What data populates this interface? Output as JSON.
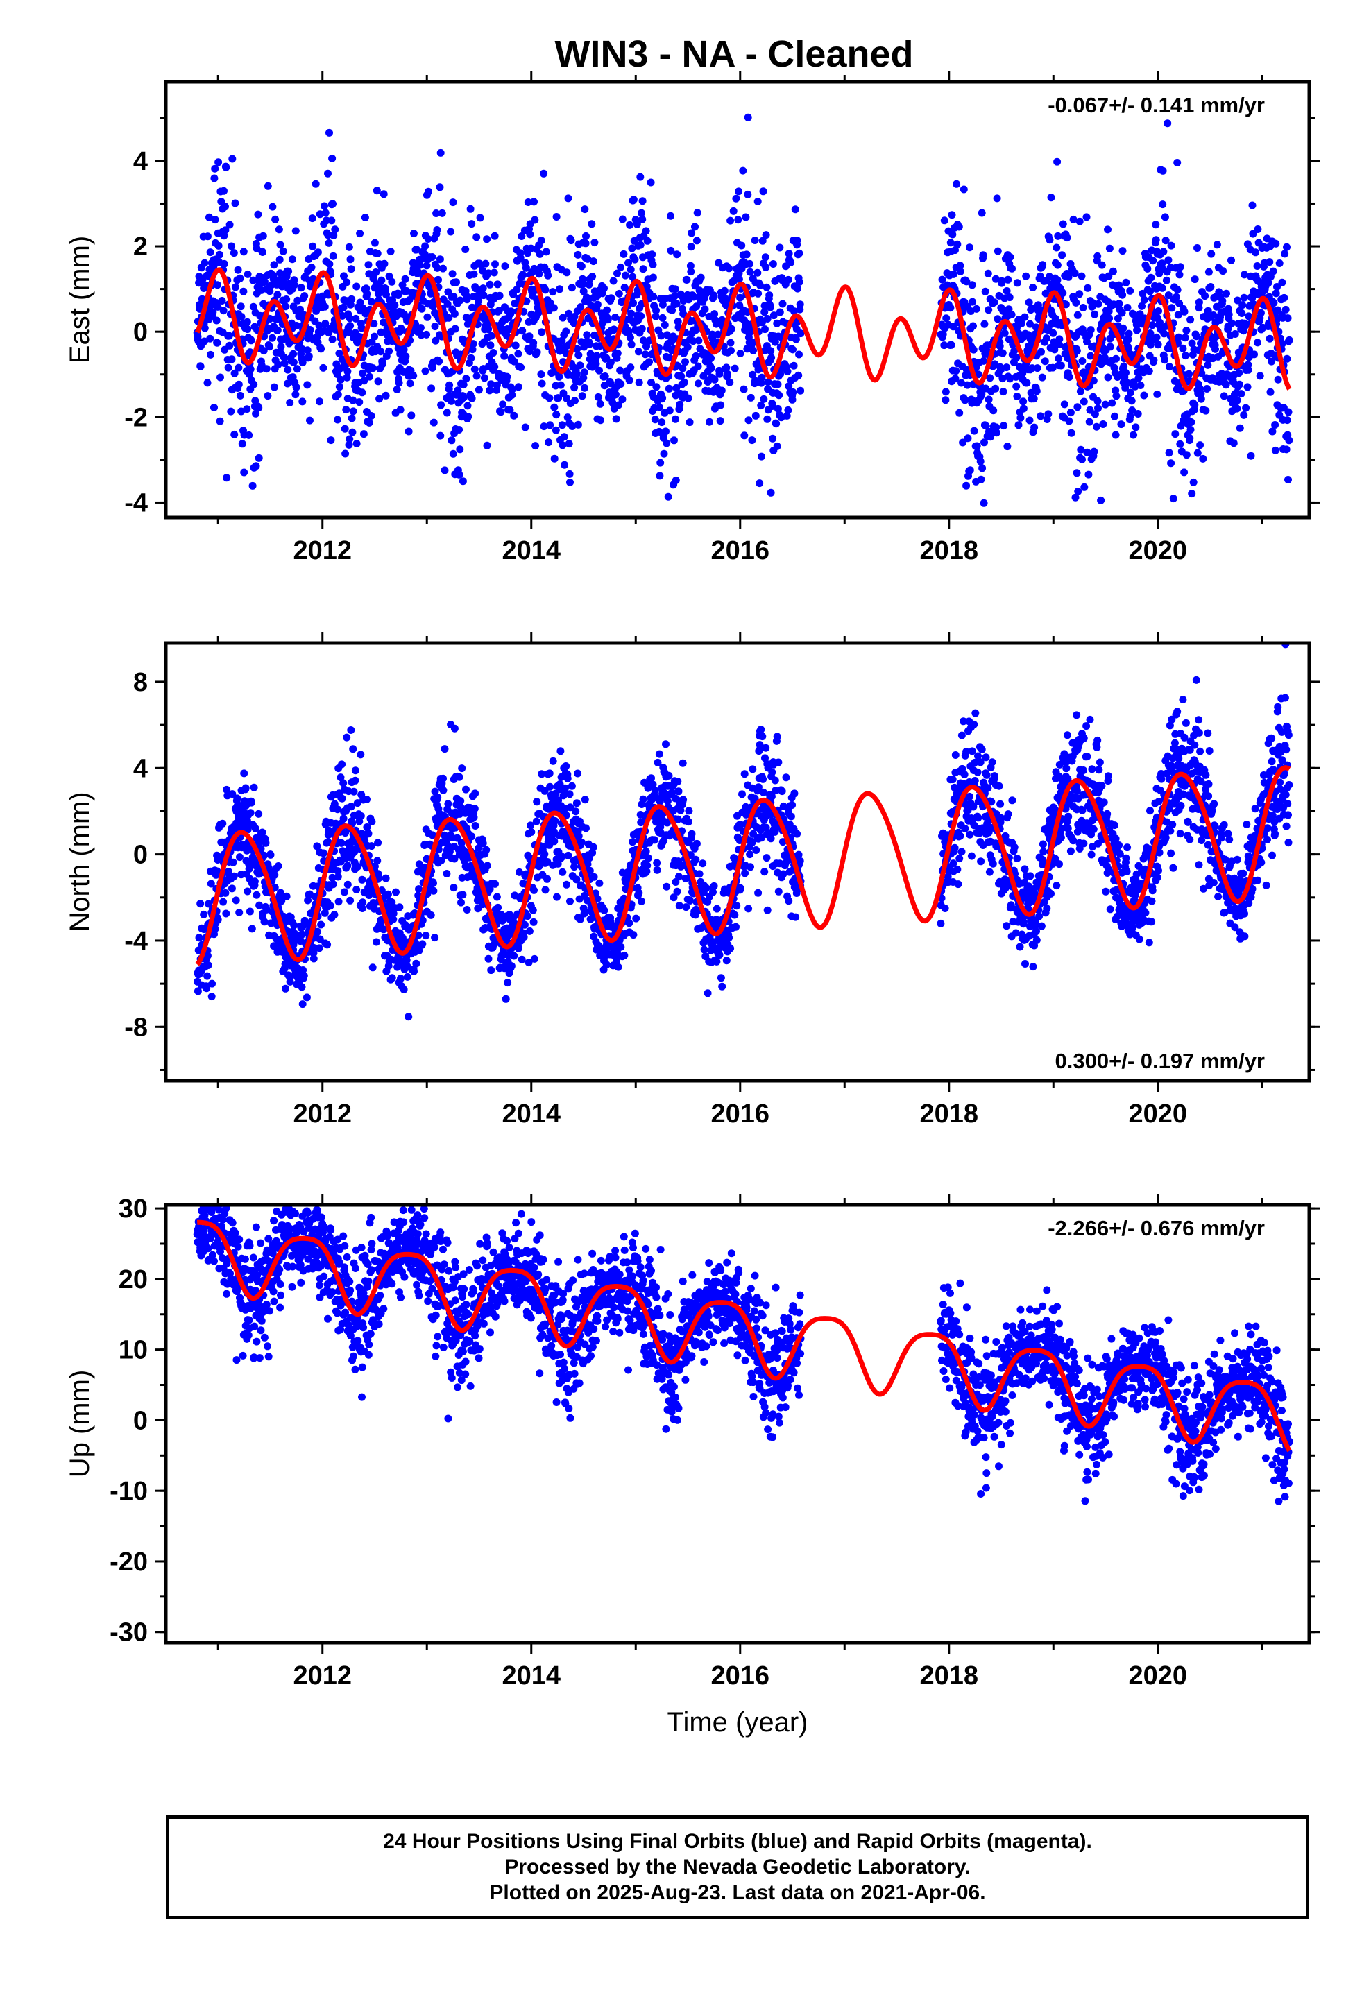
{
  "title": "WIN3  - NA - Cleaned",
  "colors": {
    "data": "#0000ff",
    "model": "#ff0000",
    "frame": "#000000",
    "rapid": "#ff00ff"
  },
  "chart_data": [
    {
      "type": "scatter",
      "name": "east",
      "ylabel": "East (mm)",
      "xlabel": "",
      "xlim": [
        2010.5,
        2021.45
      ],
      "ylim": [
        -4.35,
        5.85
      ],
      "yticks": [
        -4,
        -2,
        0,
        2,
        4
      ],
      "xticks": [
        2012,
        2014,
        2016,
        2018,
        2020
      ],
      "xtick_labels": [
        "2012",
        "2014",
        "2016",
        "2018",
        "2020"
      ],
      "rate_text": "-0.067+/- 0.141 mm/yr",
      "rate_position": "top-right",
      "data_span": [
        2010.8,
        2021.26
      ],
      "data_gap": [
        2016.58,
        2017.92
      ],
      "model": {
        "offset": 0.0,
        "trend": -0.067,
        "annual": 0.45,
        "annual_phase": 2.1,
        "semiannual": 0.75,
        "semiannual_phase": 1.3
      },
      "noise": 1.15
    },
    {
      "type": "scatter",
      "name": "north",
      "ylabel": "North (mm)",
      "xlabel": "",
      "xlim": [
        2010.5,
        2021.45
      ],
      "ylim": [
        -10.5,
        9.8
      ],
      "yticks": [
        -8,
        -4,
        0,
        4,
        8
      ],
      "xticks": [
        2012,
        2014,
        2016,
        2018,
        2020
      ],
      "xtick_labels": [
        "2012",
        "2014",
        "2016",
        "2018",
        "2020"
      ],
      "rate_text": "0.300+/- 0.197 mm/yr",
      "rate_position": "bottom-right",
      "data_span": [
        2010.8,
        2021.26
      ],
      "data_gap": [
        2016.58,
        2017.92
      ],
      "model": {
        "offset": -0.4,
        "trend": 0.3,
        "annual": 3.0,
        "annual_phase": 0.0,
        "semiannual": 0.3,
        "semiannual_phase": 0.7
      },
      "noise": 1.3
    },
    {
      "type": "scatter",
      "name": "up",
      "ylabel": "Up (mm)",
      "xlabel": "Time (year)",
      "xlim": [
        2010.5,
        2021.45
      ],
      "ylim": [
        -31.5,
        30.5
      ],
      "yticks": [
        -30,
        -20,
        -10,
        0,
        10,
        20,
        30
      ],
      "xticks": [
        2012,
        2014,
        2016,
        2018,
        2020
      ],
      "xtick_labels": [
        "2012",
        "2014",
        "2016",
        "2018",
        "2020"
      ],
      "rate_text": "-2.266+/- 0.676 mm/yr",
      "rate_position": "top-right",
      "data_span": [
        2010.8,
        2021.26
      ],
      "data_gap": [
        2016.58,
        2017.92
      ],
      "model": {
        "offset": 12.5,
        "trend": -2.266,
        "annual": 4.8,
        "annual_phase": 2.6,
        "semiannual": 1.0,
        "semiannual_phase": 0.6
      },
      "noise": 3.6
    }
  ],
  "footer": {
    "line1": "24 Hour Positions Using Final Orbits (blue) and Rapid Orbits (magenta).",
    "line2": "Processed by the Nevada Geodetic Laboratory.",
    "line3": "Plotted on 2025-Aug-23. Last data on 2021-Apr-06."
  }
}
